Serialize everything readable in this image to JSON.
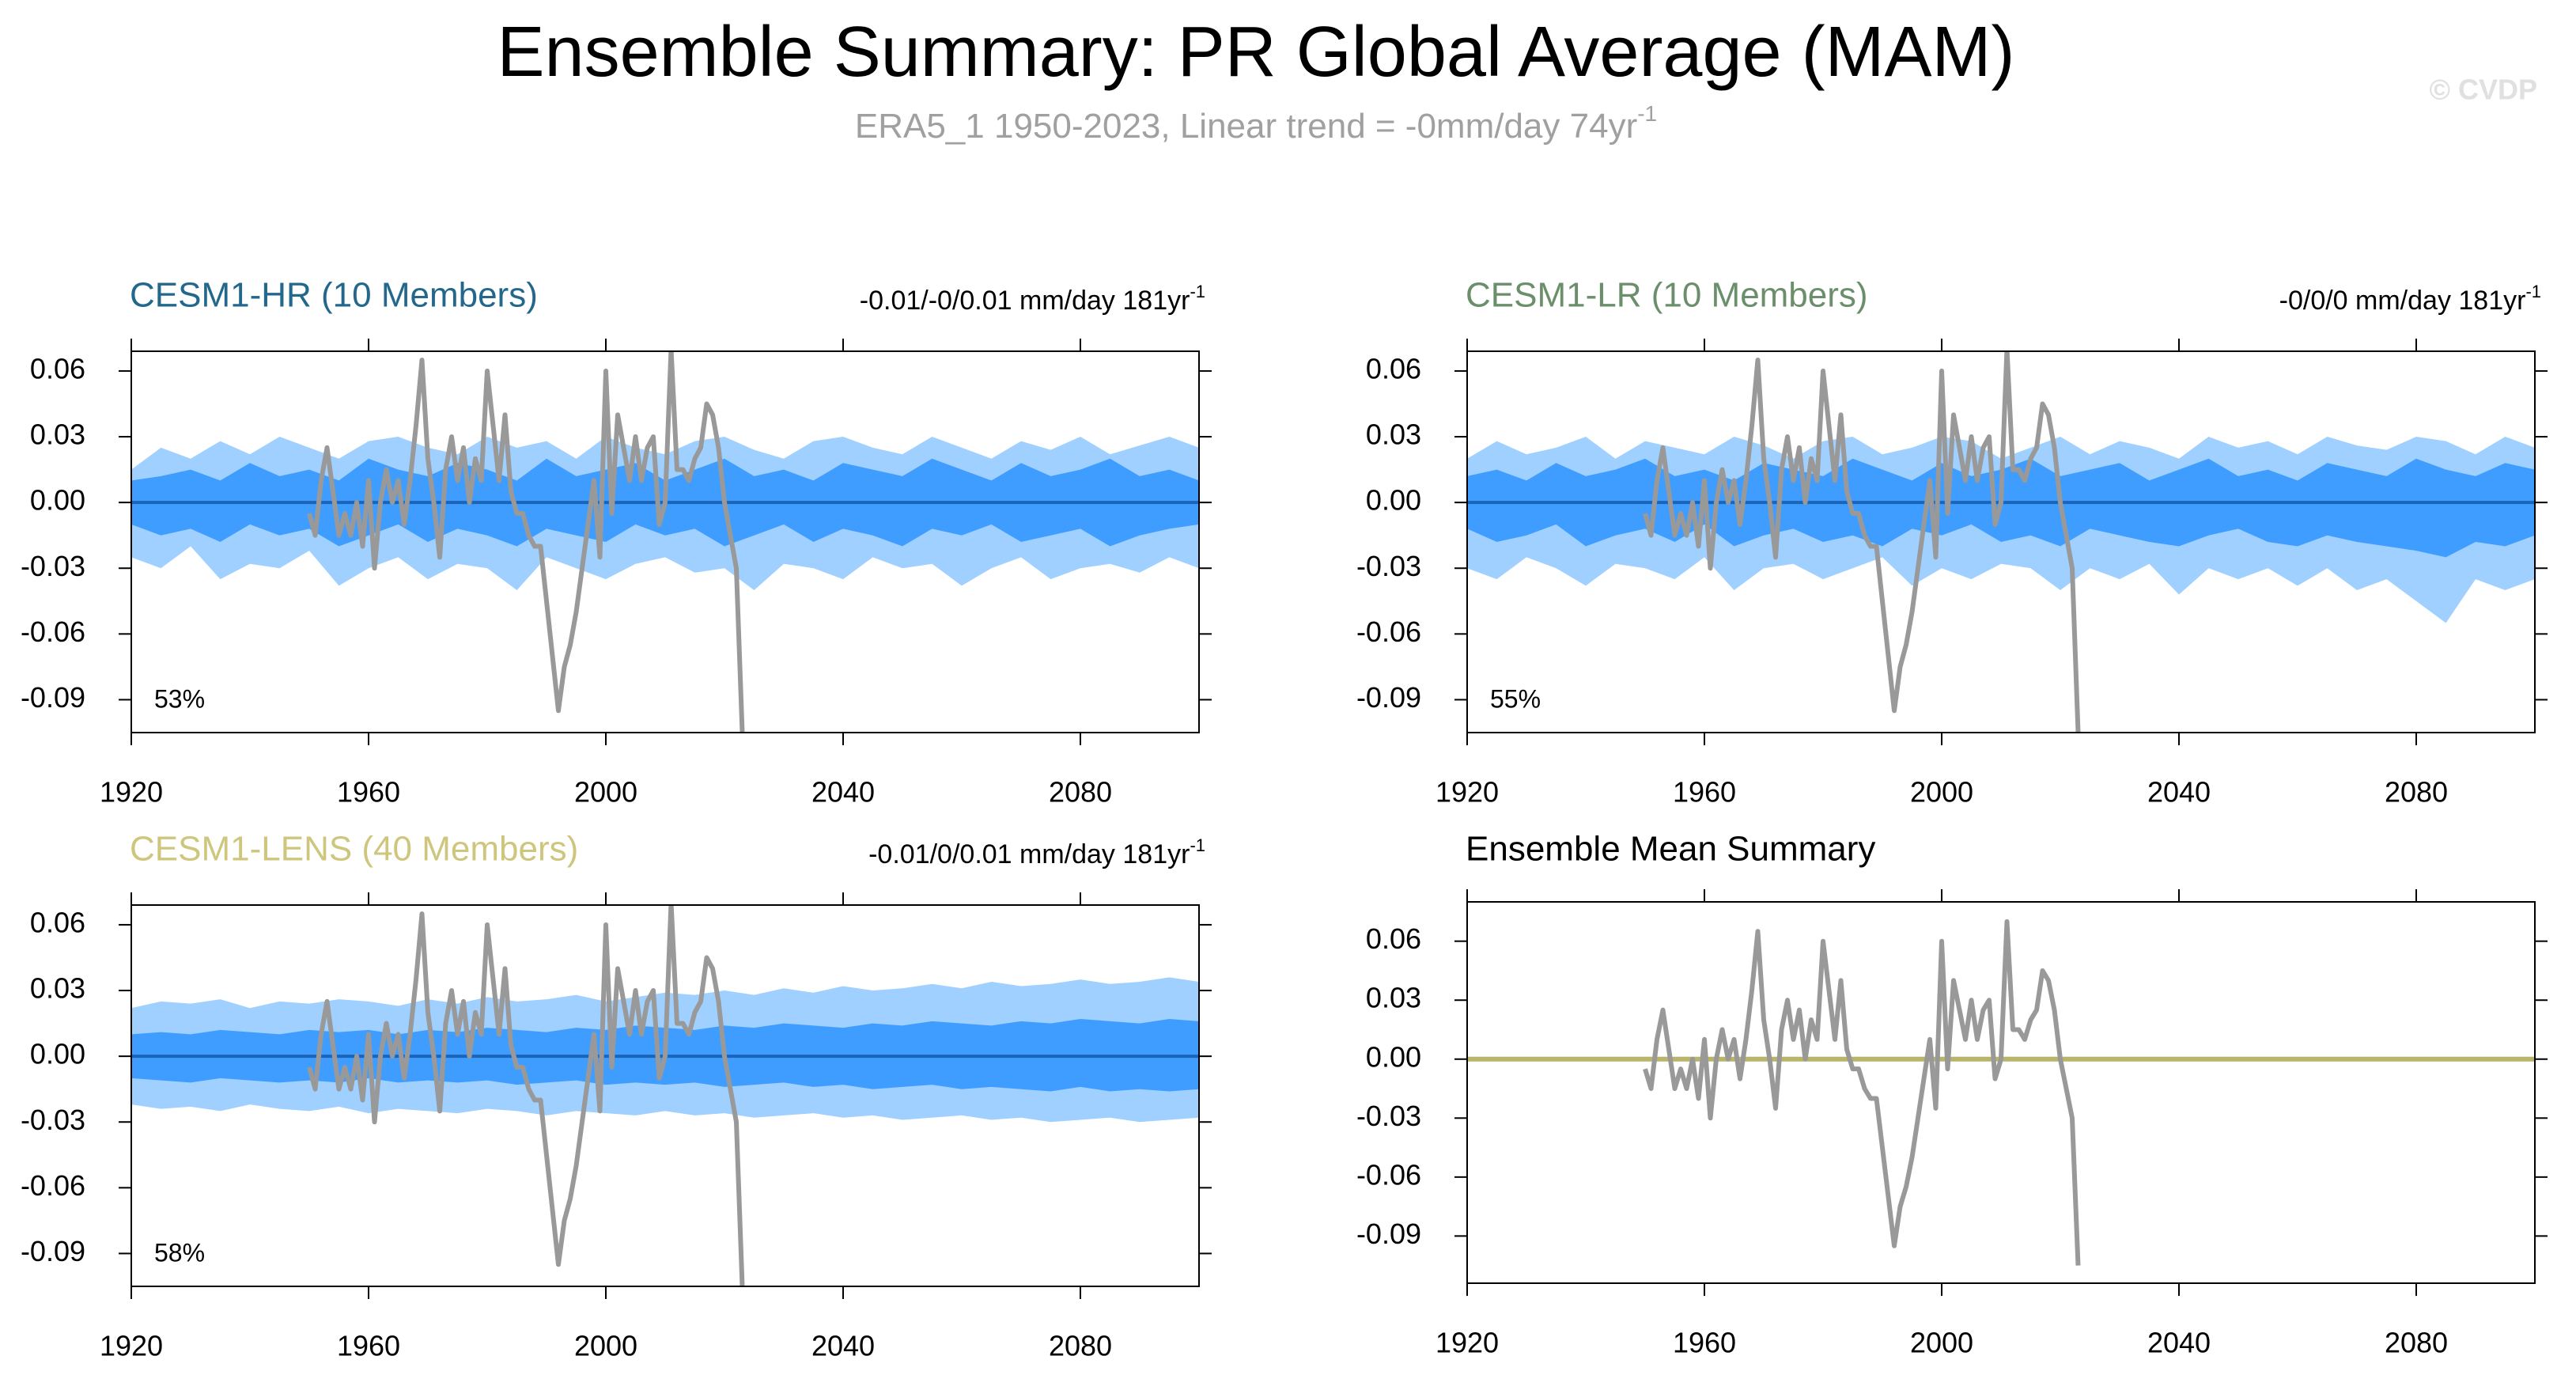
{
  "chart_data": {
    "title": "Ensemble Summary: PR Global Average (MAM)",
    "subtitle": "ERA5_1 1950-2023, Linear trend = -0mm/day 74yr",
    "subtitle_sup": "-1",
    "watermark": "© CVDP",
    "observation": {
      "color": "#999999",
      "x": [
        1950,
        1951,
        1952,
        1953,
        1954,
        1955,
        1956,
        1957,
        1958,
        1959,
        1960,
        1961,
        1962,
        1963,
        1964,
        1965,
        1966,
        1967,
        1968,
        1969,
        1970,
        1971,
        1972,
        1973,
        1974,
        1975,
        1976,
        1977,
        1978,
        1979,
        1980,
        1981,
        1982,
        1983,
        1984,
        1985,
        1986,
        1987,
        1988,
        1989,
        1990,
        1991,
        1992,
        1993,
        1994,
        1995,
        1996,
        1997,
        1998,
        1999,
        2000,
        2001,
        2002,
        2003,
        2004,
        2005,
        2006,
        2007,
        2008,
        2009,
        2010,
        2011,
        2012,
        2013,
        2014,
        2015,
        2016,
        2017,
        2018,
        2019,
        2020,
        2021,
        2022,
        2023
      ],
      "values": [
        -0.005,
        -0.015,
        0.01,
        0.025,
        0.005,
        -0.015,
        -0.005,
        -0.015,
        0.0,
        -0.02,
        0.01,
        -0.03,
        0.0,
        0.015,
        0.0,
        0.01,
        -0.01,
        0.01,
        0.035,
        0.065,
        0.02,
        0.0,
        -0.025,
        0.015,
        0.03,
        0.01,
        0.025,
        0.0,
        0.02,
        0.01,
        0.06,
        0.035,
        0.01,
        0.04,
        0.005,
        -0.005,
        -0.005,
        -0.015,
        -0.02,
        -0.02,
        -0.045,
        -0.07,
        -0.095,
        -0.075,
        -0.065,
        -0.05,
        -0.03,
        -0.01,
        0.01,
        -0.025,
        0.06,
        -0.005,
        0.04,
        0.025,
        0.01,
        0.03,
        0.01,
        0.025,
        0.03,
        -0.01,
        0.0,
        0.07,
        0.015,
        0.015,
        0.01,
        0.02,
        0.025,
        0.045,
        0.04,
        0.025,
        0.0,
        -0.015,
        -0.03,
        -0.105
      ]
    },
    "band_x": [
      1920,
      1925,
      1930,
      1935,
      1940,
      1945,
      1950,
      1955,
      1960,
      1965,
      1970,
      1975,
      1980,
      1985,
      1990,
      1995,
      2000,
      2005,
      2010,
      2015,
      2020,
      2025,
      2030,
      2035,
      2040,
      2045,
      2050,
      2055,
      2060,
      2065,
      2070,
      2075,
      2080,
      2085,
      2090,
      2095,
      2100
    ],
    "mean_x": [
      1920,
      2100
    ],
    "panels": [
      {
        "type": "band",
        "title": "CESM1-HR (10 Members)",
        "title_color": "#23688c",
        "trend": "-0.01/-0/0.01 mm/day 181yr",
        "trend_sup": "-1",
        "percent": "53%",
        "xlim": [
          1920,
          2100
        ],
        "ylim": [
          -0.105,
          0.069
        ],
        "xticks": [
          1920,
          1960,
          2000,
          2040,
          2080
        ],
        "yticks": [
          0.06,
          0.03,
          {
            "value": 0,
            "label": "0.00"
          },
          -0.03,
          -0.06,
          -0.09
        ],
        "outer_color": "#9fd0ff",
        "inner_color": "#3f9dff",
        "mean_color": "#1b64b8",
        "outer_upper": [
          0.015,
          0.025,
          0.02,
          0.028,
          0.022,
          0.03,
          0.025,
          0.02,
          0.028,
          0.03,
          0.025,
          0.022,
          0.03,
          0.025,
          0.028,
          0.02,
          0.03,
          0.025,
          0.022,
          0.028,
          0.03,
          0.024,
          0.02,
          0.028,
          0.03,
          0.025,
          0.022,
          0.03,
          0.025,
          0.02,
          0.028,
          0.024,
          0.03,
          0.022,
          0.026,
          0.03,
          0.025
        ],
        "outer_lower": [
          -0.025,
          -0.03,
          -0.02,
          -0.035,
          -0.028,
          -0.03,
          -0.022,
          -0.038,
          -0.03,
          -0.025,
          -0.035,
          -0.028,
          -0.03,
          -0.04,
          -0.025,
          -0.03,
          -0.035,
          -0.028,
          -0.025,
          -0.032,
          -0.03,
          -0.04,
          -0.028,
          -0.03,
          -0.035,
          -0.025,
          -0.03,
          -0.028,
          -0.038,
          -0.03,
          -0.025,
          -0.035,
          -0.03,
          -0.028,
          -0.032,
          -0.025,
          -0.03
        ],
        "inner_upper": [
          0.01,
          0.012,
          0.015,
          0.01,
          0.018,
          0.012,
          0.015,
          0.01,
          0.02,
          0.015,
          0.012,
          0.018,
          0.015,
          0.01,
          0.02,
          0.012,
          0.015,
          0.018,
          0.01,
          0.015,
          0.02,
          0.012,
          0.015,
          0.01,
          0.018,
          0.015,
          0.012,
          0.02,
          0.015,
          0.01,
          0.018,
          0.012,
          0.015,
          0.02,
          0.012,
          0.015,
          0.01
        ],
        "inner_lower": [
          -0.01,
          -0.015,
          -0.012,
          -0.018,
          -0.01,
          -0.015,
          -0.012,
          -0.02,
          -0.015,
          -0.01,
          -0.018,
          -0.012,
          -0.015,
          -0.02,
          -0.012,
          -0.015,
          -0.018,
          -0.01,
          -0.015,
          -0.012,
          -0.02,
          -0.015,
          -0.01,
          -0.018,
          -0.012,
          -0.015,
          -0.02,
          -0.012,
          -0.015,
          -0.01,
          -0.018,
          -0.015,
          -0.012,
          -0.02,
          -0.015,
          -0.012,
          -0.01
        ],
        "mean_values": [
          0,
          0
        ]
      },
      {
        "type": "band",
        "title": "CESM1-LR (10 Members)",
        "title_color": "#6a8f6a",
        "trend": "-0/0/0 mm/day 181yr",
        "trend_sup": "-1",
        "percent": "55%",
        "xlim": [
          1920,
          2100
        ],
        "ylim": [
          -0.105,
          0.069
        ],
        "xticks": [
          1920,
          1960,
          2000,
          2040,
          2080
        ],
        "yticks": [
          0.06,
          0.03,
          {
            "value": 0,
            "label": "0.00"
          },
          -0.03,
          -0.06,
          -0.09
        ],
        "outer_color": "#9fd0ff",
        "inner_color": "#3f9dff",
        "mean_color": "#1b64b8",
        "outer_upper": [
          0.02,
          0.028,
          0.022,
          0.025,
          0.03,
          0.02,
          0.028,
          0.025,
          0.022,
          0.03,
          0.026,
          0.02,
          0.028,
          0.03,
          0.022,
          0.025,
          0.03,
          0.028,
          0.02,
          0.025,
          0.03,
          0.022,
          0.028,
          0.025,
          0.02,
          0.03,
          0.025,
          0.028,
          0.022,
          0.03,
          0.026,
          0.024,
          0.03,
          0.028,
          0.022,
          0.03,
          0.025
        ],
        "outer_lower": [
          -0.03,
          -0.035,
          -0.025,
          -0.03,
          -0.038,
          -0.028,
          -0.03,
          -0.035,
          -0.025,
          -0.04,
          -0.03,
          -0.028,
          -0.035,
          -0.03,
          -0.025,
          -0.038,
          -0.03,
          -0.035,
          -0.028,
          -0.03,
          -0.04,
          -0.03,
          -0.035,
          -0.028,
          -0.042,
          -0.03,
          -0.035,
          -0.03,
          -0.038,
          -0.03,
          -0.04,
          -0.035,
          -0.045,
          -0.055,
          -0.035,
          -0.04,
          -0.035
        ],
        "inner_upper": [
          0.012,
          0.015,
          0.01,
          0.018,
          0.012,
          0.015,
          0.02,
          0.012,
          0.015,
          0.01,
          0.018,
          0.015,
          0.012,
          0.02,
          0.015,
          0.01,
          0.018,
          0.012,
          0.015,
          0.02,
          0.012,
          0.015,
          0.018,
          0.01,
          0.015,
          0.02,
          0.012,
          0.015,
          0.01,
          0.018,
          0.015,
          0.012,
          0.02,
          0.015,
          0.012,
          0.018,
          0.015
        ],
        "inner_lower": [
          -0.012,
          -0.018,
          -0.015,
          -0.01,
          -0.02,
          -0.015,
          -0.012,
          -0.018,
          -0.01,
          -0.02,
          -0.015,
          -0.012,
          -0.018,
          -0.015,
          -0.02,
          -0.012,
          -0.015,
          -0.01,
          -0.018,
          -0.015,
          -0.02,
          -0.012,
          -0.015,
          -0.018,
          -0.02,
          -0.015,
          -0.012,
          -0.018,
          -0.02,
          -0.015,
          -0.018,
          -0.02,
          -0.022,
          -0.025,
          -0.018,
          -0.02,
          -0.015
        ],
        "mean_values": [
          0,
          0
        ]
      },
      {
        "type": "band",
        "title": "CESM1-LENS (40 Members)",
        "title_color": "#cfc67e",
        "trend": "-0.01/0/0.01 mm/day 181yr",
        "trend_sup": "-1",
        "percent": "58%",
        "xlim": [
          1920,
          2100
        ],
        "ylim": [
          -0.105,
          0.069
        ],
        "xticks": [
          1920,
          1960,
          2000,
          2040,
          2080
        ],
        "yticks": [
          0.06,
          0.03,
          {
            "value": 0,
            "label": "0.00"
          },
          -0.03,
          -0.06,
          -0.09
        ],
        "outer_color": "#9fd0ff",
        "inner_color": "#3f9dff",
        "mean_color": "#1b64b8",
        "outer_upper": [
          0.022,
          0.025,
          0.024,
          0.026,
          0.022,
          0.025,
          0.024,
          0.026,
          0.025,
          0.023,
          0.026,
          0.024,
          0.027,
          0.025,
          0.026,
          0.028,
          0.025,
          0.027,
          0.029,
          0.028,
          0.03,
          0.028,
          0.031,
          0.029,
          0.032,
          0.03,
          0.031,
          0.033,
          0.031,
          0.034,
          0.032,
          0.033,
          0.035,
          0.033,
          0.034,
          0.036,
          0.034
        ],
        "outer_lower": [
          -0.022,
          -0.024,
          -0.023,
          -0.025,
          -0.022,
          -0.024,
          -0.025,
          -0.023,
          -0.026,
          -0.024,
          -0.025,
          -0.026,
          -0.024,
          -0.025,
          -0.027,
          -0.025,
          -0.026,
          -0.027,
          -0.025,
          -0.027,
          -0.026,
          -0.028,
          -0.027,
          -0.026,
          -0.028,
          -0.027,
          -0.029,
          -0.028,
          -0.027,
          -0.029,
          -0.028,
          -0.03,
          -0.029,
          -0.028,
          -0.03,
          -0.029,
          -0.028
        ],
        "inner_upper": [
          0.01,
          0.011,
          0.01,
          0.012,
          0.011,
          0.01,
          0.012,
          0.011,
          0.012,
          0.01,
          0.012,
          0.011,
          0.013,
          0.012,
          0.011,
          0.013,
          0.012,
          0.014,
          0.013,
          0.012,
          0.014,
          0.013,
          0.015,
          0.014,
          0.013,
          0.015,
          0.014,
          0.016,
          0.015,
          0.014,
          0.016,
          0.015,
          0.017,
          0.016,
          0.015,
          0.017,
          0.016
        ],
        "inner_lower": [
          -0.01,
          -0.011,
          -0.012,
          -0.01,
          -0.011,
          -0.012,
          -0.011,
          -0.012,
          -0.01,
          -0.012,
          -0.011,
          -0.012,
          -0.011,
          -0.013,
          -0.012,
          -0.011,
          -0.013,
          -0.012,
          -0.013,
          -0.012,
          -0.014,
          -0.013,
          -0.012,
          -0.014,
          -0.013,
          -0.015,
          -0.014,
          -0.013,
          -0.015,
          -0.014,
          -0.015,
          -0.016,
          -0.014,
          -0.016,
          -0.015,
          -0.016,
          -0.015
        ],
        "mean_values": [
          0,
          0
        ]
      },
      {
        "type": "line",
        "title": "Ensemble Mean Summary",
        "title_color": "#000000",
        "xlim": [
          1920,
          2100
        ],
        "ylim": [
          -0.114,
          0.08
        ],
        "xticks": [
          1920,
          1960,
          2000,
          2040,
          2080
        ],
        "yticks": [
          0.06,
          0.03,
          {
            "value": 0,
            "label": "0.00"
          },
          -0.03,
          -0.06,
          -0.09
        ],
        "mean_color": "#b8b46a",
        "mean_values": [
          0,
          0
        ]
      }
    ]
  }
}
